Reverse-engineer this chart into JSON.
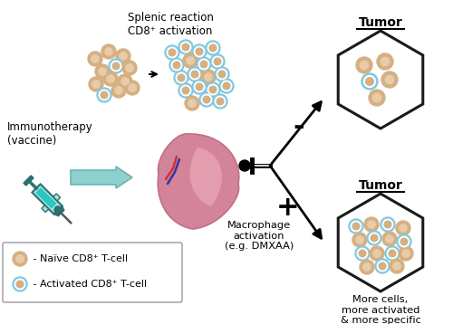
{
  "bg_color": "#ffffff",
  "naive_outer": "#d4b083",
  "naive_inner": "#e8ccaa",
  "act_outer": "#7ec8e3",
  "act_white": "#ffffff",
  "act_inner": "#d4b083",
  "spleen_main": "#d4849a",
  "spleen_light": "#e8a8b8",
  "spleen_dark": "#c07080",
  "teal_arrow": "#8ecfcf",
  "teal_arrow_dark": "#6ab5b5",
  "vessel_red": "#cc3333",
  "vessel_blue": "#3333aa",
  "hex_edge": "#1a1a1a",
  "arrow_color": "#1a1a1a",
  "label_splenic": "Splenic reaction\nCD8⁺ activation",
  "label_immuno": "Immunotherapy\n(vaccine)",
  "label_macro": "Macrophage\nactivation\n(e.g. DMXAA)",
  "label_more": "More cells,\nmore activated\n& more specific",
  "title_tumor": "Tumor",
  "minus_label": "-",
  "plus_label": "+",
  "legend_naive": " - Naïve CD8⁺ T-cell",
  "legend_activated": " - Activated CD8⁺ T-cell",
  "figsize": [
    5.0,
    3.58
  ],
  "dpi": 100
}
